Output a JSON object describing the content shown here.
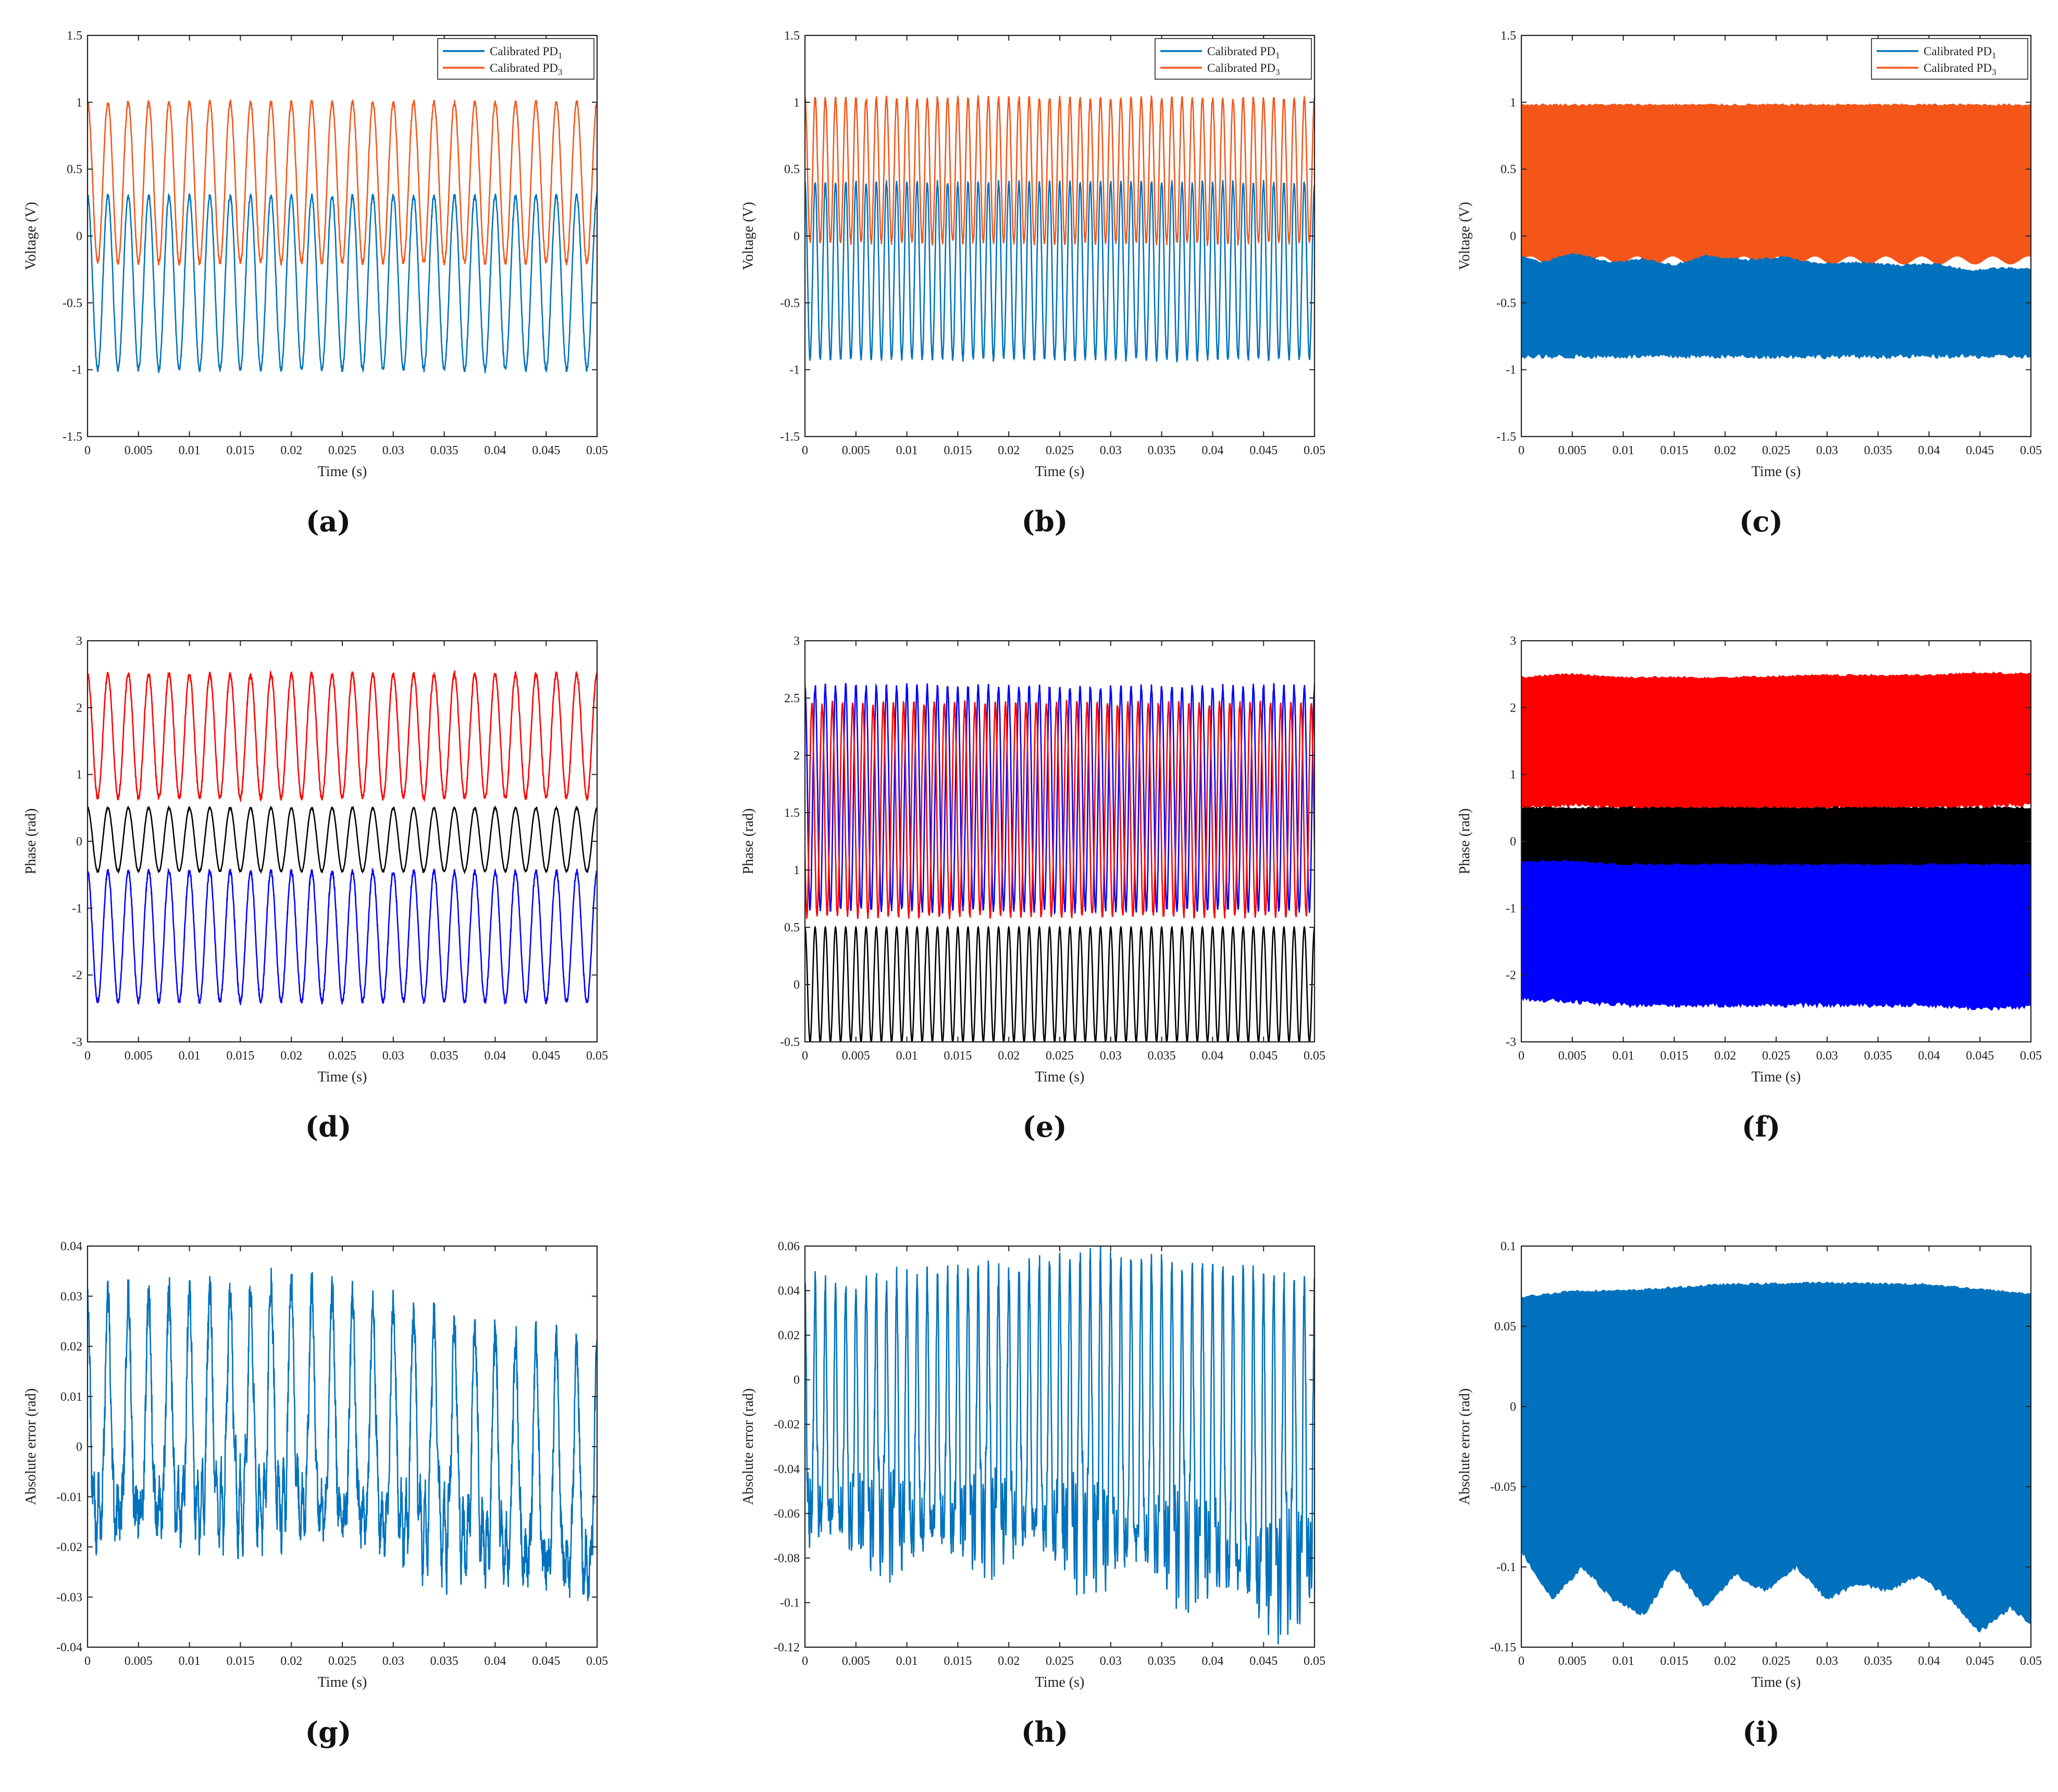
{
  "figure": {
    "captions": [
      "(a)",
      "(b)",
      "(c)",
      "(d)",
      "(e)",
      "(f)",
      "(g)",
      "(h)",
      "(i)"
    ]
  },
  "colors": {
    "pd1": "#0072BD",
    "pd3": "#F4561A",
    "red": "#FF0000",
    "black": "#000000",
    "blue": "#0000FF"
  },
  "chart_data": [
    {
      "id": "a",
      "type": "line",
      "caption": "(a)",
      "xlabel": "Time (s)",
      "ylabel": "Voltage (V)",
      "xlim": [
        0,
        0.05
      ],
      "ylim": [
        -1.5,
        1.5
      ],
      "xticks": [
        0,
        0.005,
        0.01,
        0.015,
        0.02,
        0.025,
        0.03,
        0.035,
        0.04,
        0.045,
        0.05
      ],
      "xticklabels": [
        "0",
        "0.005",
        "0.01",
        "0.015",
        "0.02",
        "0.025",
        "0.03",
        "0.035",
        "0.04",
        "0.045",
        "0.05"
      ],
      "yticks": [
        -1.5,
        -1,
        -0.5,
        0,
        0.5,
        1,
        1.5
      ],
      "yticklabels": [
        "-1.5",
        "-1",
        "-0.5",
        "0",
        "0.5",
        "1",
        "1.5"
      ],
      "legend": {
        "position": "top-right",
        "entries": [
          {
            "label": "Calibrated PD",
            "sub": "1",
            "color": "#0072BD"
          },
          {
            "label": "Calibrated PD",
            "sub": "3",
            "color": "#F4561A"
          }
        ]
      },
      "series": [
        {
          "name": "Calibrated PD1",
          "color": "#0072BD",
          "periods": 25,
          "min": -1.0,
          "max": 0.3,
          "noise": 0.02
        },
        {
          "name": "Calibrated PD3",
          "color": "#F4561A",
          "periods": 25,
          "min": -0.2,
          "max": 1.0,
          "noise": 0.02
        }
      ]
    },
    {
      "id": "b",
      "type": "line",
      "caption": "(b)",
      "xlabel": "Time (s)",
      "ylabel": "Voltage (V)",
      "xlim": [
        0,
        0.05
      ],
      "ylim": [
        -1.5,
        1.5
      ],
      "xticks": [
        0,
        0.005,
        0.01,
        0.015,
        0.02,
        0.025,
        0.03,
        0.035,
        0.04,
        0.045,
        0.05
      ],
      "xticklabels": [
        "0",
        "0.005",
        "0.01",
        "0.015",
        "0.02",
        "0.025",
        "0.03",
        "0.035",
        "0.04",
        "0.045",
        "0.05"
      ],
      "yticks": [
        -1.5,
        -1,
        -0.5,
        0,
        0.5,
        1,
        1.5
      ],
      "yticklabels": [
        "-1.5",
        "-1",
        "-0.5",
        "0",
        "0.5",
        "1",
        "1.5"
      ],
      "legend": {
        "position": "top-right",
        "entries": [
          {
            "label": "Calibrated PD",
            "sub": "1",
            "color": "#0072BD"
          },
          {
            "label": "Calibrated PD",
            "sub": "3",
            "color": "#F4561A"
          }
        ]
      },
      "series": [
        {
          "name": "Calibrated PD1",
          "color": "#0072BD",
          "periods": 50,
          "min": -0.92,
          "max": 0.4,
          "noise": 0.02
        },
        {
          "name": "Calibrated PD3",
          "color": "#F4561A",
          "periods": 50,
          "min": -0.05,
          "max": 1.03,
          "noise": 0.02
        }
      ]
    },
    {
      "id": "c",
      "type": "area",
      "caption": "(c)",
      "xlabel": "Time (s)",
      "ylabel": "Voltage (V)",
      "xlim": [
        0,
        0.05
      ],
      "ylim": [
        -1.5,
        1.5
      ],
      "xticks": [
        0,
        0.005,
        0.01,
        0.015,
        0.02,
        0.025,
        0.03,
        0.035,
        0.04,
        0.045,
        0.05
      ],
      "xticklabels": [
        "0",
        "0.005",
        "0.01",
        "0.015",
        "0.02",
        "0.025",
        "0.03",
        "0.035",
        "0.04",
        "0.045",
        "0.05"
      ],
      "yticks": [
        -1.5,
        -1,
        -0.5,
        0,
        0.5,
        1,
        1.5
      ],
      "yticklabels": [
        "-1.5",
        "-1",
        "-0.5",
        "0",
        "0.5",
        "1",
        "1.5"
      ],
      "legend": {
        "position": "top-right",
        "entries": [
          {
            "label": "Calibrated PD",
            "sub": "1",
            "color": "#0072BD"
          },
          {
            "label": "Calibrated PD",
            "sub": "3",
            "color": "#F4561A"
          }
        ]
      },
      "bands": [
        {
          "name": "Calibrated PD3",
          "color": "#F4561A",
          "upper": [
            [
              0,
              0.98
            ],
            [
              0.05,
              0.98
            ]
          ],
          "lower": "prev"
        },
        {
          "name": "Calibrated PD1",
          "color": "#0072BD",
          "upper": [
            [
              0,
              -0.15
            ],
            [
              0.002,
              -0.2
            ],
            [
              0.005,
              -0.13
            ],
            [
              0.009,
              -0.2
            ],
            [
              0.012,
              -0.17
            ],
            [
              0.015,
              -0.22
            ],
            [
              0.018,
              -0.15
            ],
            [
              0.022,
              -0.18
            ],
            [
              0.026,
              -0.16
            ],
            [
              0.029,
              -0.21
            ],
            [
              0.033,
              -0.2
            ],
            [
              0.037,
              -0.22
            ],
            [
              0.041,
              -0.21
            ],
            [
              0.044,
              -0.26
            ],
            [
              0.047,
              -0.24
            ],
            [
              0.05,
              -0.25
            ]
          ],
          "lower": [
            [
              0,
              -0.9
            ],
            [
              0.05,
              -0.9
            ]
          ]
        }
      ]
    },
    {
      "id": "d",
      "type": "line",
      "caption": "(d)",
      "xlabel": "Time (s)",
      "ylabel": "Phase (rad)",
      "xlim": [
        0,
        0.05
      ],
      "ylim": [
        -3,
        3
      ],
      "xticks": [
        0,
        0.005,
        0.01,
        0.015,
        0.02,
        0.025,
        0.03,
        0.035,
        0.04,
        0.045,
        0.05
      ],
      "xticklabels": [
        "0",
        "0.005",
        "0.01",
        "0.015",
        "0.02",
        "0.025",
        "0.03",
        "0.035",
        "0.04",
        "0.045",
        "0.05"
      ],
      "yticks": [
        -3,
        -2,
        -1,
        0,
        1,
        2,
        3
      ],
      "yticklabels": [
        "-3",
        "-2",
        "-1",
        "0",
        "1",
        "2",
        "3"
      ],
      "series": [
        {
          "name": "red",
          "color": "#FF0000",
          "periods": 25,
          "min": 0.65,
          "max": 2.5,
          "noise": 0.04
        },
        {
          "name": "black",
          "color": "#000000",
          "periods": 25,
          "min": -0.45,
          "max": 0.5,
          "noise": 0.01
        },
        {
          "name": "blue",
          "color": "#0000FF",
          "periods": 25,
          "min": -2.4,
          "max": -0.45,
          "noise": 0.04
        }
      ]
    },
    {
      "id": "e",
      "type": "line",
      "caption": "(e)",
      "xlabel": "Time (s)",
      "ylabel": "Phase (rad)",
      "xlim": [
        0,
        0.05
      ],
      "ylim": [
        -0.5,
        3
      ],
      "xticks": [
        0,
        0.005,
        0.01,
        0.015,
        0.02,
        0.025,
        0.03,
        0.035,
        0.04,
        0.045,
        0.05
      ],
      "xticklabels": [
        "0",
        "0.005",
        "0.01",
        "0.015",
        "0.02",
        "0.025",
        "0.03",
        "0.035",
        "0.04",
        "0.045",
        "0.05"
      ],
      "yticks": [
        -0.5,
        0,
        0.5,
        1,
        1.5,
        2,
        2.5,
        3
      ],
      "yticklabels": [
        "-0.5",
        "0",
        "0.5",
        "1",
        "1.5",
        "2",
        "2.5",
        "3"
      ],
      "series": [
        {
          "name": "blue",
          "color": "#0000FF",
          "periods": 50,
          "min": 0.65,
          "max": 2.6,
          "noise": 0.03
        },
        {
          "name": "red",
          "color": "#FF0000",
          "periods": 50,
          "min": 0.6,
          "max": 2.45,
          "noise": 0.03,
          "phase": 2.0
        },
        {
          "name": "black",
          "color": "#000000",
          "periods": 50,
          "min": -0.5,
          "max": 0.5,
          "noise": 0.0
        }
      ]
    },
    {
      "id": "f",
      "type": "area",
      "caption": "(f)",
      "xlabel": "Time (s)",
      "ylabel": "Phase (rad)",
      "xlim": [
        0,
        0.05
      ],
      "ylim": [
        -3,
        3
      ],
      "xticks": [
        0,
        0.005,
        0.01,
        0.015,
        0.02,
        0.025,
        0.03,
        0.035,
        0.04,
        0.045,
        0.05
      ],
      "xticklabels": [
        "0",
        "0.005",
        "0.01",
        "0.015",
        "0.02",
        "0.025",
        "0.03",
        "0.035",
        "0.04",
        "0.045",
        "0.05"
      ],
      "yticks": [
        -3,
        -2,
        -1,
        0,
        1,
        2,
        3
      ],
      "yticklabels": [
        "-3",
        "-2",
        "-1",
        "0",
        "1",
        "2",
        "3"
      ],
      "bands": [
        {
          "name": "red",
          "color": "#FF0000",
          "upper": [
            [
              0,
              2.45
            ],
            [
              0.005,
              2.5
            ],
            [
              0.01,
              2.45
            ],
            [
              0.02,
              2.45
            ],
            [
              0.03,
              2.48
            ],
            [
              0.04,
              2.48
            ],
            [
              0.045,
              2.52
            ],
            [
              0.05,
              2.5
            ]
          ],
          "lower": [
            [
              0,
              0.5
            ],
            [
              0.005,
              0.55
            ],
            [
              0.01,
              0.5
            ],
            [
              0.02,
              0.45
            ],
            [
              0.03,
              0.5
            ],
            [
              0.04,
              0.5
            ],
            [
              0.05,
              0.55
            ]
          ]
        },
        {
          "name": "black",
          "color": "#000000",
          "upper": [
            [
              0,
              0.5
            ],
            [
              0.05,
              0.5
            ]
          ],
          "lower": [
            [
              0,
              -0.4
            ],
            [
              0.05,
              -0.4
            ]
          ]
        },
        {
          "name": "blue",
          "color": "#0000FF",
          "upper": [
            [
              0,
              -0.3
            ],
            [
              0.005,
              -0.3
            ],
            [
              0.01,
              -0.35
            ],
            [
              0.02,
              -0.35
            ],
            [
              0.03,
              -0.35
            ],
            [
              0.04,
              -0.35
            ],
            [
              0.05,
              -0.35
            ]
          ],
          "lower": [
            [
              0,
              -2.35
            ],
            [
              0.005,
              -2.4
            ],
            [
              0.01,
              -2.45
            ],
            [
              0.02,
              -2.45
            ],
            [
              0.03,
              -2.45
            ],
            [
              0.04,
              -2.45
            ],
            [
              0.045,
              -2.5
            ],
            [
              0.05,
              -2.48
            ]
          ]
        }
      ]
    },
    {
      "id": "g",
      "type": "line",
      "caption": "(g)",
      "xlabel": "Time (s)",
      "ylabel": "Absolute error (rad)",
      "xlim": [
        0,
        0.05
      ],
      "ylim": [
        -0.04,
        0.04
      ],
      "xticks": [
        0,
        0.005,
        0.01,
        0.015,
        0.02,
        0.025,
        0.03,
        0.035,
        0.04,
        0.045,
        0.05
      ],
      "xticklabels": [
        "0",
        "0.005",
        "0.01",
        "0.015",
        "0.02",
        "0.025",
        "0.03",
        "0.035",
        "0.04",
        "0.045",
        "0.05"
      ],
      "yticks": [
        -0.04,
        -0.03,
        -0.02,
        -0.01,
        0,
        0.01,
        0.02,
        0.03,
        0.04
      ],
      "yticklabels": [
        "-0.04",
        "-0.03",
        "-0.02",
        "-0.01",
        "0",
        "0.01",
        "0.02",
        "0.03",
        "0.04"
      ],
      "series": [
        {
          "name": "error",
          "color": "#0072BD",
          "periods": 25,
          "style": "spiky",
          "upper": [
            [
              0,
              0.03
            ],
            [
              0.01,
              0.031
            ],
            [
              0.02,
              0.033
            ],
            [
              0.03,
              0.028
            ],
            [
              0.04,
              0.022
            ],
            [
              0.05,
              0.02
            ]
          ],
          "lower": [
            [
              0,
              -0.018
            ],
            [
              0.01,
              -0.017
            ],
            [
              0.02,
              -0.016
            ],
            [
              0.03,
              -0.02
            ],
            [
              0.04,
              -0.025
            ],
            [
              0.05,
              -0.03
            ]
          ],
          "noise": 0.004
        }
      ]
    },
    {
      "id": "h",
      "type": "line",
      "caption": "(h)",
      "xlabel": "Time (s)",
      "ylabel": "Absolute error (rad)",
      "xlim": [
        0,
        0.05
      ],
      "ylim": [
        -0.12,
        0.06
      ],
      "xticks": [
        0,
        0.005,
        0.01,
        0.015,
        0.02,
        0.025,
        0.03,
        0.035,
        0.04,
        0.045,
        0.05
      ],
      "xticklabels": [
        "0",
        "0.005",
        "0.01",
        "0.015",
        "0.02",
        "0.025",
        "0.03",
        "0.035",
        "0.04",
        "0.045",
        "0.05"
      ],
      "yticks": [
        -0.12,
        -0.1,
        -0.08,
        -0.06,
        -0.04,
        -0.02,
        0,
        0.02,
        0.04,
        0.06
      ],
      "yticklabels": [
        "-0.12",
        "-0.1",
        "-0.08",
        "-0.06",
        "-0.04",
        "-0.02",
        "0",
        "0.02",
        "0.04",
        "0.06"
      ],
      "series": [
        {
          "name": "error",
          "color": "#0072BD",
          "periods": 50,
          "style": "spiky",
          "upper": [
            [
              0,
              0.043
            ],
            [
              0.01,
              0.045
            ],
            [
              0.02,
              0.05
            ],
            [
              0.03,
              0.055
            ],
            [
              0.04,
              0.05
            ],
            [
              0.05,
              0.044
            ]
          ],
          "lower": [
            [
              0,
              -0.07
            ],
            [
              0.01,
              -0.078
            ],
            [
              0.02,
              -0.075
            ],
            [
              0.03,
              -0.085
            ],
            [
              0.04,
              -0.09
            ],
            [
              0.045,
              -0.105
            ],
            [
              0.05,
              -0.095
            ]
          ],
          "noise": 0.006
        }
      ]
    },
    {
      "id": "i",
      "type": "area",
      "caption": "(i)",
      "xlabel": "Time (s)",
      "ylabel": "Absolute error (rad)",
      "xlim": [
        0,
        0.05
      ],
      "ylim": [
        -0.15,
        0.1
      ],
      "xticks": [
        0,
        0.005,
        0.01,
        0.015,
        0.02,
        0.025,
        0.03,
        0.035,
        0.04,
        0.045,
        0.05
      ],
      "xticklabels": [
        "0",
        "0.005",
        "0.01",
        "0.015",
        "0.02",
        "0.025",
        "0.03",
        "0.035",
        "0.04",
        "0.045",
        "0.05"
      ],
      "yticks": [
        -0.15,
        -0.1,
        -0.05,
        0,
        0.05,
        0.1
      ],
      "yticklabels": [
        "-0.15",
        "-0.1",
        "-0.05",
        "0",
        "0.05",
        "0.1"
      ],
      "bands": [
        {
          "name": "error",
          "color": "#0072BD",
          "upper": [
            [
              0,
              0.068
            ],
            [
              0.005,
              0.072
            ],
            [
              0.01,
              0.072
            ],
            [
              0.02,
              0.076
            ],
            [
              0.03,
              0.077
            ],
            [
              0.04,
              0.076
            ],
            [
              0.045,
              0.073
            ],
            [
              0.05,
              0.07
            ]
          ],
          "lower": [
            [
              0,
              -0.09
            ],
            [
              0.003,
              -0.12
            ],
            [
              0.006,
              -0.1
            ],
            [
              0.009,
              -0.12
            ],
            [
              0.012,
              -0.13
            ],
            [
              0.015,
              -0.1
            ],
            [
              0.018,
              -0.125
            ],
            [
              0.021,
              -0.105
            ],
            [
              0.024,
              -0.115
            ],
            [
              0.027,
              -0.1
            ],
            [
              0.03,
              -0.12
            ],
            [
              0.033,
              -0.11
            ],
            [
              0.036,
              -0.115
            ],
            [
              0.039,
              -0.105
            ],
            [
              0.042,
              -0.12
            ],
            [
              0.045,
              -0.14
            ],
            [
              0.048,
              -0.125
            ],
            [
              0.05,
              -0.135
            ]
          ]
        }
      ]
    }
  ]
}
